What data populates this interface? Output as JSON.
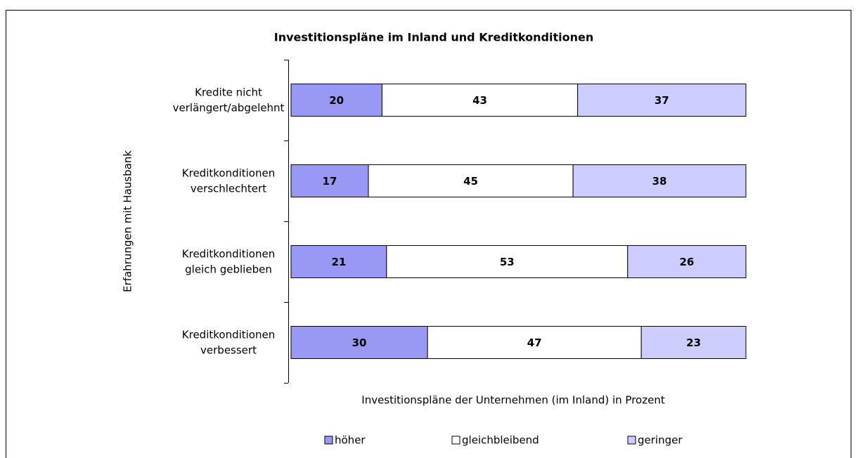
{
  "chart_data": {
    "type": "stacked_hbar",
    "title": "Investitionspläne im Inland und Kreditkonditionen",
    "x_label": "Investitionspläne der Unternehmen (im Inland) in Prozent",
    "y_label": "Erfahrungen mit Hausbank",
    "categories": [
      "Kredite nicht\nverlängert/abgelehnt",
      "Kreditkonditionen\nverschlechtert",
      "Kreditkonditionen\ngleich geblieben",
      "Kreditkonditionen\nverbessert"
    ],
    "series": [
      {
        "name": "höher",
        "color": "#9999f5",
        "values": [
          20,
          17,
          21,
          30
        ]
      },
      {
        "name": "gleichbleibend",
        "color": "#ffffff",
        "values": [
          43,
          45,
          53,
          47
        ]
      },
      {
        "name": "geringer",
        "color": "#ccccff",
        "values": [
          37,
          38,
          26,
          23
        ]
      }
    ],
    "xlim": [
      0,
      100
    ],
    "legend": "bottom"
  }
}
